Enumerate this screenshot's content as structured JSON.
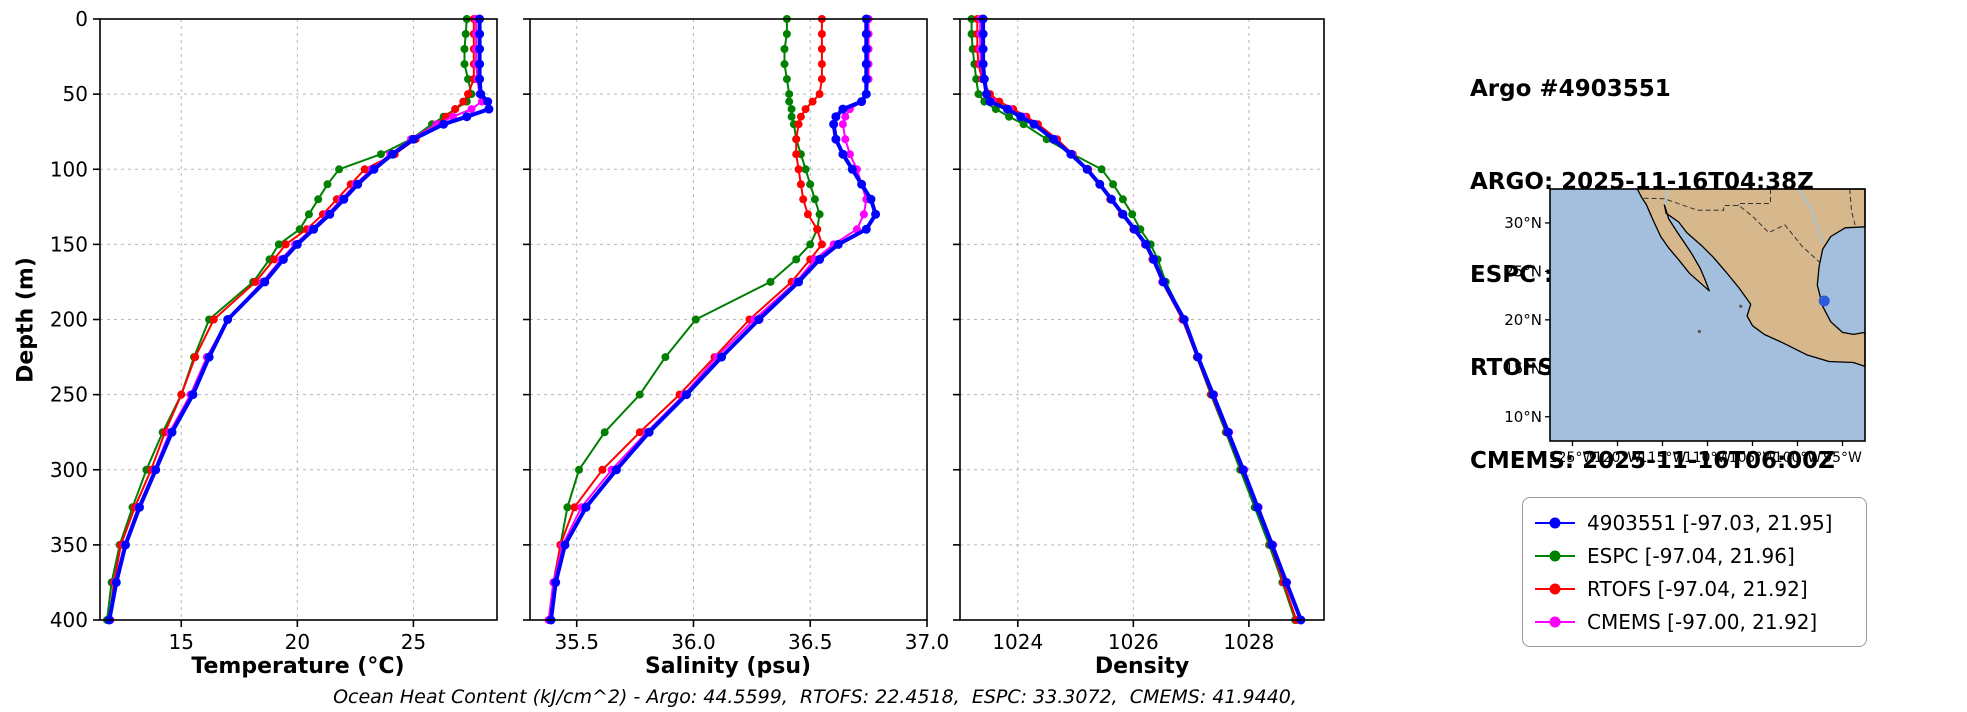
{
  "header": {
    "title": "Argo #4903551",
    "lines": [
      "ARGO: 2025-11-16T04:38Z",
      "ESPC : 2025-11-16T06:00Z",
      "RTOFS: 2025-11-16T00:00Z",
      "CMEMS: 2025-11-16T06:00Z"
    ]
  },
  "footer": {
    "text": "Ocean Heat Content (kJ/cm^2) - Argo: 44.5599,  RTOFS: 22.4518,  ESPC: 33.3072,  CMEMS: 41.9440,"
  },
  "legend": {
    "entries": [
      {
        "label": "4903551 [-97.03, 21.95]",
        "color": "#0000ff"
      },
      {
        "label": "ESPC [-97.04, 21.96]",
        "color": "#008000"
      },
      {
        "label": "RTOFS [-97.04, 21.92]",
        "color": "#ff0000"
      },
      {
        "label": "CMEMS [-97.00, 21.92]",
        "color": "#ff00ff"
      }
    ]
  },
  "map": {
    "lon_range": [
      -127.5,
      -92.5
    ],
    "lat_range": [
      7.5,
      33.5
    ],
    "ocean_color": "#a3bfdd",
    "land_color": "#d6b88c",
    "river_color": "#9ec8ea",
    "lat_ticks": [
      30,
      25,
      20,
      15,
      10
    ],
    "lat_tick_labels": [
      "30°N",
      "25°N",
      "20°N",
      "15°N",
      "10°N"
    ],
    "lon_ticks": [
      -125,
      -120,
      -115,
      -110,
      -105,
      -100,
      -95
    ],
    "lon_tick_labels": [
      "125°W",
      "120°W",
      "115°W",
      "110°W",
      "105°W",
      "100°W",
      "95°W"
    ],
    "marker": {
      "lon": -97.03,
      "lat": 21.95,
      "color": "#2a5cdb"
    },
    "land_polygon": [
      [
        -117.8,
        33.5
      ],
      [
        -92.5,
        33.5
      ],
      [
        -92.5,
        29.6
      ],
      [
        -94.7,
        29.5
      ],
      [
        -96.3,
        28.6
      ],
      [
        -97.2,
        27.3
      ],
      [
        -97.6,
        25.5
      ],
      [
        -97.8,
        23.6
      ],
      [
        -97.2,
        21.4
      ],
      [
        -96.3,
        19.8
      ],
      [
        -95.0,
        18.7
      ],
      [
        -93.8,
        18.5
      ],
      [
        -92.5,
        18.7
      ],
      [
        -92.5,
        15.2
      ],
      [
        -93.8,
        15.6
      ],
      [
        -96.5,
        15.7
      ],
      [
        -99.0,
        16.4
      ],
      [
        -101.8,
        17.7
      ],
      [
        -103.7,
        18.5
      ],
      [
        -105.0,
        19.4
      ],
      [
        -105.6,
        20.4
      ],
      [
        -105.2,
        21.6
      ],
      [
        -106.5,
        23.3
      ],
      [
        -108.0,
        25.0
      ],
      [
        -109.4,
        26.5
      ],
      [
        -110.7,
        27.7
      ],
      [
        -112.3,
        29.0
      ],
      [
        -113.2,
        30.1
      ],
      [
        -114.6,
        31.0
      ],
      [
        -114.8,
        31.9
      ],
      [
        -114.3,
        30.4
      ],
      [
        -113.4,
        29.1
      ],
      [
        -112.6,
        28.0
      ],
      [
        -111.8,
        26.9
      ],
      [
        -110.8,
        25.3
      ],
      [
        -110.3,
        24.2
      ],
      [
        -109.8,
        23.0
      ],
      [
        -112.0,
        24.8
      ],
      [
        -113.2,
        26.2
      ],
      [
        -114.3,
        27.4
      ],
      [
        -115.2,
        28.6
      ],
      [
        -116.0,
        30.2
      ],
      [
        -116.8,
        31.9
      ],
      [
        -117.3,
        32.6
      ]
    ],
    "islands": [
      [
        -110.9,
        18.8
      ],
      [
        -106.3,
        21.4
      ]
    ],
    "borders": [
      [
        [
          -117.1,
          32.55
        ],
        [
          -114.8,
          32.5
        ],
        [
          -111.1,
          31.3
        ],
        [
          -108.2,
          31.3
        ],
        [
          -108.2,
          31.8
        ],
        [
          -106.5,
          31.8
        ],
        [
          -104.9,
          30.6
        ],
        [
          -103.2,
          29.0
        ],
        [
          -101.4,
          29.8
        ],
        [
          -99.5,
          27.6
        ],
        [
          -97.5,
          25.9
        ]
      ],
      [
        [
          -103.0,
          33.5
        ],
        [
          -103.0,
          32.0
        ],
        [
          -106.6,
          32.0
        ],
        [
          -106.5,
          31.8
        ]
      ],
      [
        [
          -94.2,
          33.5
        ],
        [
          -94.0,
          31.2
        ],
        [
          -93.6,
          29.8
        ]
      ]
    ],
    "rivers": [
      [
        [
          -114.4,
          33.5
        ],
        [
          -114.7,
          32.3
        ],
        [
          -114.8,
          31.9
        ]
      ],
      [
        [
          -99.8,
          33.5
        ],
        [
          -98.6,
          31.6
        ],
        [
          -97.4,
          28.6
        ],
        [
          -97.2,
          27.9
        ]
      ]
    ]
  },
  "chart_data": [
    {
      "name": "temperature",
      "type": "line",
      "xlabel": "Temperature (°C)",
      "ylabel": "Depth (m)",
      "xlim": [
        11.5,
        28.6
      ],
      "xticks": [
        15,
        20,
        25
      ],
      "xtick_labels": [
        "15",
        "20",
        "25"
      ],
      "ylim": [
        0,
        400
      ],
      "yticks": [
        0,
        50,
        100,
        150,
        200,
        250,
        300,
        350,
        400
      ],
      "ytick_labels": [
        "0",
        "50",
        "100",
        "150",
        "200",
        "250",
        "300",
        "350",
        "400"
      ],
      "grid": true,
      "depths": [
        0,
        10,
        20,
        30,
        40,
        50,
        55,
        60,
        65,
        70,
        80,
        90,
        100,
        110,
        120,
        130,
        140,
        150,
        160,
        175,
        200,
        225,
        250,
        275,
        300,
        325,
        350,
        375,
        400
      ],
      "series": [
        {
          "name": "4903551",
          "color": "#0000ff",
          "line_width": 4,
          "marker_size": 4.5,
          "values": [
            27.85,
            27.85,
            27.85,
            27.85,
            27.85,
            27.9,
            28.2,
            28.25,
            27.3,
            26.3,
            25.0,
            24.1,
            23.3,
            22.6,
            22.0,
            21.4,
            20.7,
            20.0,
            19.4,
            18.6,
            17.0,
            16.2,
            15.5,
            14.6,
            13.9,
            13.2,
            12.6,
            12.2,
            11.9
          ]
        },
        {
          "name": "ESPC",
          "color": "#008000",
          "line_width": 2,
          "marker_size": 4,
          "values": [
            27.3,
            27.25,
            27.2,
            27.2,
            27.35,
            27.5,
            27.3,
            26.8,
            26.3,
            25.8,
            24.9,
            23.6,
            21.8,
            21.3,
            20.9,
            20.5,
            20.1,
            19.2,
            18.8,
            18.1,
            16.2,
            15.55,
            15.0,
            14.2,
            13.5,
            12.9,
            12.35,
            12.0,
            11.8
          ]
        },
        {
          "name": "RTOFS",
          "color": "#ff0000",
          "line_width": 2,
          "marker_size": 4,
          "values": [
            27.6,
            27.6,
            27.6,
            27.6,
            27.6,
            27.35,
            27.15,
            26.8,
            26.4,
            26.0,
            25.1,
            24.2,
            22.9,
            22.3,
            21.7,
            21.1,
            20.4,
            19.5,
            19.0,
            18.2,
            16.4,
            15.6,
            15.0,
            14.3,
            13.7,
            13.0,
            12.4,
            12.1,
            11.9
          ]
        },
        {
          "name": "CMEMS",
          "color": "#ff00ff",
          "line_width": 2,
          "marker_size": 4,
          "values": [
            27.7,
            27.7,
            27.7,
            27.7,
            27.75,
            27.85,
            27.95,
            27.5,
            26.7,
            26.0,
            24.9,
            24.0,
            23.2,
            22.5,
            21.9,
            21.3,
            20.6,
            19.9,
            19.3,
            18.5,
            17.0,
            16.1,
            15.4,
            14.5,
            13.85,
            13.15,
            12.55,
            12.15,
            11.95
          ]
        }
      ]
    },
    {
      "name": "salinity",
      "type": "line",
      "xlabel": "Salinity (psu)",
      "ylabel": "Depth (m)",
      "xlim": [
        35.3,
        37.0
      ],
      "xticks": [
        35.5,
        36.0,
        36.5,
        37.0
      ],
      "xtick_labels": [
        "35.5",
        "36.0",
        "36.5",
        "37.0"
      ],
      "ylim": [
        0,
        400
      ],
      "yticks": [
        0,
        50,
        100,
        150,
        200,
        250,
        300,
        350,
        400
      ],
      "ytick_labels": [
        "0",
        "50",
        "100",
        "150",
        "200",
        "250",
        "300",
        "350",
        "400"
      ],
      "grid": true,
      "depths": [
        0,
        10,
        20,
        30,
        40,
        50,
        55,
        60,
        65,
        70,
        80,
        90,
        100,
        110,
        120,
        130,
        140,
        150,
        160,
        175,
        200,
        225,
        250,
        275,
        300,
        325,
        350,
        375,
        400
      ],
      "series": [
        {
          "name": "4903551",
          "color": "#0000ff",
          "line_width": 4,
          "marker_size": 4.5,
          "values": [
            36.74,
            36.74,
            36.74,
            36.74,
            36.74,
            36.74,
            36.72,
            36.64,
            36.61,
            36.6,
            36.61,
            36.64,
            36.68,
            36.72,
            36.76,
            36.78,
            36.74,
            36.62,
            36.54,
            36.45,
            36.28,
            36.12,
            35.97,
            35.81,
            35.67,
            35.54,
            35.45,
            35.41,
            35.39
          ]
        },
        {
          "name": "ESPC",
          "color": "#008000",
          "line_width": 2,
          "marker_size": 4,
          "values": [
            36.4,
            36.4,
            36.39,
            36.39,
            36.4,
            36.41,
            36.41,
            36.42,
            36.42,
            36.43,
            36.44,
            36.46,
            36.48,
            36.5,
            36.52,
            36.54,
            36.53,
            36.5,
            36.44,
            36.33,
            36.01,
            35.88,
            35.77,
            35.62,
            35.51,
            35.46,
            35.43,
            35.41,
            35.39
          ]
        },
        {
          "name": "RTOFS",
          "color": "#ff0000",
          "line_width": 2,
          "marker_size": 4,
          "values": [
            36.55,
            36.55,
            36.55,
            36.55,
            36.55,
            36.54,
            36.51,
            36.48,
            36.46,
            36.45,
            36.44,
            36.44,
            36.45,
            36.46,
            36.47,
            36.49,
            36.53,
            36.55,
            36.5,
            36.42,
            36.24,
            36.09,
            35.94,
            35.77,
            35.61,
            35.49,
            35.43,
            35.4,
            35.38
          ]
        },
        {
          "name": "CMEMS",
          "color": "#ff00ff",
          "line_width": 2,
          "marker_size": 4,
          "values": [
            36.75,
            36.75,
            36.75,
            36.75,
            36.75,
            36.74,
            36.72,
            36.67,
            36.65,
            36.64,
            36.65,
            36.67,
            36.7,
            36.72,
            36.74,
            36.73,
            36.7,
            36.6,
            36.52,
            36.44,
            36.26,
            36.1,
            35.96,
            35.8,
            35.65,
            35.52,
            35.44,
            35.4,
            35.38
          ]
        }
      ]
    },
    {
      "name": "density",
      "type": "line",
      "xlabel": "Density",
      "ylabel": "Depth (m)",
      "xlim": [
        1023.0,
        1029.3
      ],
      "xticks": [
        1024,
        1026,
        1028
      ],
      "xtick_labels": [
        "1024",
        "1026",
        "1028"
      ],
      "ylim": [
        0,
        400
      ],
      "yticks": [
        0,
        50,
        100,
        150,
        200,
        250,
        300,
        350,
        400
      ],
      "ytick_labels": [
        "0",
        "50",
        "100",
        "150",
        "200",
        "250",
        "300",
        "350",
        "400"
      ],
      "grid": true,
      "depths": [
        0,
        10,
        20,
        30,
        40,
        50,
        55,
        60,
        65,
        70,
        80,
        90,
        100,
        110,
        120,
        130,
        140,
        150,
        160,
        175,
        200,
        225,
        250,
        275,
        300,
        325,
        350,
        375,
        400
      ],
      "series": [
        {
          "name": "4903551",
          "color": "#0000ff",
          "line_width": 4,
          "marker_size": 4.5,
          "values": [
            1023.4,
            1023.4,
            1023.4,
            1023.4,
            1023.42,
            1023.46,
            1023.52,
            1023.82,
            1024.05,
            1024.28,
            1024.62,
            1024.92,
            1025.2,
            1025.42,
            1025.62,
            1025.82,
            1026.02,
            1026.22,
            1026.35,
            1026.52,
            1026.88,
            1027.12,
            1027.38,
            1027.64,
            1027.9,
            1028.15,
            1028.4,
            1028.65,
            1028.9
          ]
        },
        {
          "name": "ESPC",
          "color": "#008000",
          "line_width": 2,
          "marker_size": 4,
          "values": [
            1023.2,
            1023.2,
            1023.22,
            1023.25,
            1023.28,
            1023.32,
            1023.42,
            1023.62,
            1023.85,
            1024.1,
            1024.5,
            1024.95,
            1025.45,
            1025.65,
            1025.82,
            1025.98,
            1026.12,
            1026.3,
            1026.42,
            1026.56,
            1026.88,
            1027.1,
            1027.34,
            1027.6,
            1027.85,
            1028.1,
            1028.35,
            1028.58,
            1028.8
          ]
        },
        {
          "name": "RTOFS",
          "color": "#ff0000",
          "line_width": 2,
          "marker_size": 4,
          "values": [
            1023.3,
            1023.3,
            1023.3,
            1023.32,
            1023.38,
            1023.52,
            1023.68,
            1023.92,
            1024.15,
            1024.35,
            1024.68,
            1024.95,
            1025.22,
            1025.42,
            1025.6,
            1025.8,
            1026.0,
            1026.2,
            1026.33,
            1026.5,
            1026.85,
            1027.1,
            1027.35,
            1027.62,
            1027.88,
            1028.14,
            1028.38,
            1028.6,
            1028.82
          ]
        },
        {
          "name": "CMEMS",
          "color": "#ff00ff",
          "line_width": 2,
          "marker_size": 4,
          "values": [
            1023.35,
            1023.35,
            1023.35,
            1023.36,
            1023.4,
            1023.46,
            1023.56,
            1023.86,
            1024.1,
            1024.3,
            1024.64,
            1024.94,
            1025.2,
            1025.42,
            1025.62,
            1025.82,
            1026.02,
            1026.2,
            1026.34,
            1026.5,
            1026.88,
            1027.12,
            1027.4,
            1027.66,
            1027.92,
            1028.17,
            1028.42,
            1028.66,
            1028.9
          ]
        }
      ]
    }
  ]
}
